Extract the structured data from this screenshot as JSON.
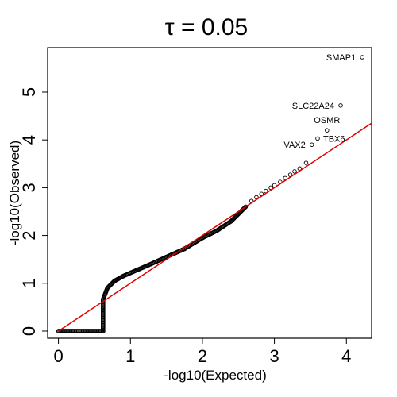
{
  "chart_data": {
    "type": "scatter",
    "title": "τ = 0.05",
    "xlabel": "-log10(Expected)",
    "ylabel": "-log10(Observed)",
    "xlim": [
      -0.15,
      4.35
    ],
    "ylim": [
      -0.15,
      5.93
    ],
    "xticks": [
      0,
      1,
      2,
      3,
      4
    ],
    "yticks": [
      0,
      1,
      2,
      3,
      4,
      5
    ],
    "tick_labels_x": [
      "0",
      "1",
      "2",
      "3",
      "4"
    ],
    "tick_labels_y": [
      "0",
      "1",
      "2",
      "3",
      "4",
      "5"
    ],
    "reference_line": {
      "color": "#e00000",
      "slope": 1.0,
      "intercept": 0.0
    },
    "colors": {
      "points": "#000000",
      "fit_line": "#e00000",
      "axes": "#000000"
    },
    "grid": false,
    "dense_segments": [
      {
        "x": [
          0.0,
          0.62
        ],
        "y": [
          0.0,
          0.0
        ]
      },
      {
        "x": [
          0.62,
          0.62
        ],
        "y": [
          0.0,
          0.66
        ]
      },
      {
        "x": [
          0.62,
          0.68,
          0.78,
          0.9,
          1.05,
          1.25,
          1.5,
          1.75,
          2.0,
          2.2,
          2.4,
          2.6
        ],
        "y": [
          0.66,
          0.9,
          1.05,
          1.15,
          1.25,
          1.38,
          1.55,
          1.72,
          1.95,
          2.1,
          2.3,
          2.6
        ]
      }
    ],
    "sparse_points": [
      {
        "x": 2.68,
        "y": 2.72
      },
      {
        "x": 2.75,
        "y": 2.8
      },
      {
        "x": 2.82,
        "y": 2.87
      },
      {
        "x": 2.88,
        "y": 2.93
      },
      {
        "x": 2.95,
        "y": 3.0
      },
      {
        "x": 3.0,
        "y": 3.05
      },
      {
        "x": 3.08,
        "y": 3.12
      },
      {
        "x": 3.15,
        "y": 3.2
      },
      {
        "x": 3.22,
        "y": 3.27
      },
      {
        "x": 3.28,
        "y": 3.34
      },
      {
        "x": 3.35,
        "y": 3.4
      },
      {
        "x": 3.44,
        "y": 3.52
      }
    ],
    "labeled_points": [
      {
        "label": "SMAP1",
        "x": 4.22,
        "y": 5.73,
        "anchor": "end",
        "dx": -8,
        "dy": 4
      },
      {
        "label": "SLC22A24",
        "x": 3.92,
        "y": 4.72,
        "anchor": "end",
        "dx": -8,
        "dy": 4
      },
      {
        "label": "OSMR",
        "x": 3.73,
        "y": 4.2,
        "anchor": "middle",
        "dx": 0,
        "dy": -9
      },
      {
        "label": "TBX6",
        "x": 3.6,
        "y": 4.03,
        "anchor": "start",
        "dx": 7,
        "dy": 4
      },
      {
        "label": "VAX2",
        "x": 3.52,
        "y": 3.9,
        "anchor": "end",
        "dx": -8,
        "dy": 4
      }
    ]
  }
}
